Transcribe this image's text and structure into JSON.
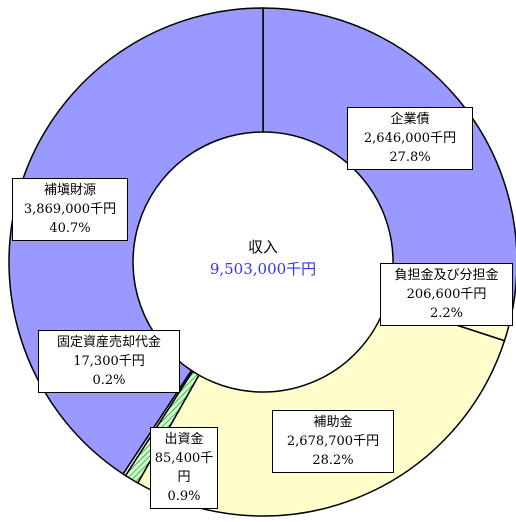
{
  "chart_data": {
    "type": "donut",
    "center_title": "収入",
    "total_label": "9,503,000千円",
    "categories": [
      "企業債",
      "負担金及び分担金",
      "補助金",
      "出資金",
      "固定資産売却代金",
      "補塡財源"
    ],
    "values": [
      2646000,
      206600,
      2678700,
      85400,
      17300,
      3869000
    ],
    "value_labels": [
      "2,646,000千円",
      "206,600千円",
      "2,678,700千円",
      "85,400千円",
      "17,300千円",
      "3,869,000千円"
    ],
    "percent_labels": [
      "27.8%",
      "2.2%",
      "28.2%",
      "0.9%",
      "0.2%",
      "40.7%"
    ],
    "colors": [
      "#9999ff",
      "#ffffcc",
      "#ffffcc",
      "#ccffcc",
      "#ffffff",
      "#9999ff"
    ]
  }
}
